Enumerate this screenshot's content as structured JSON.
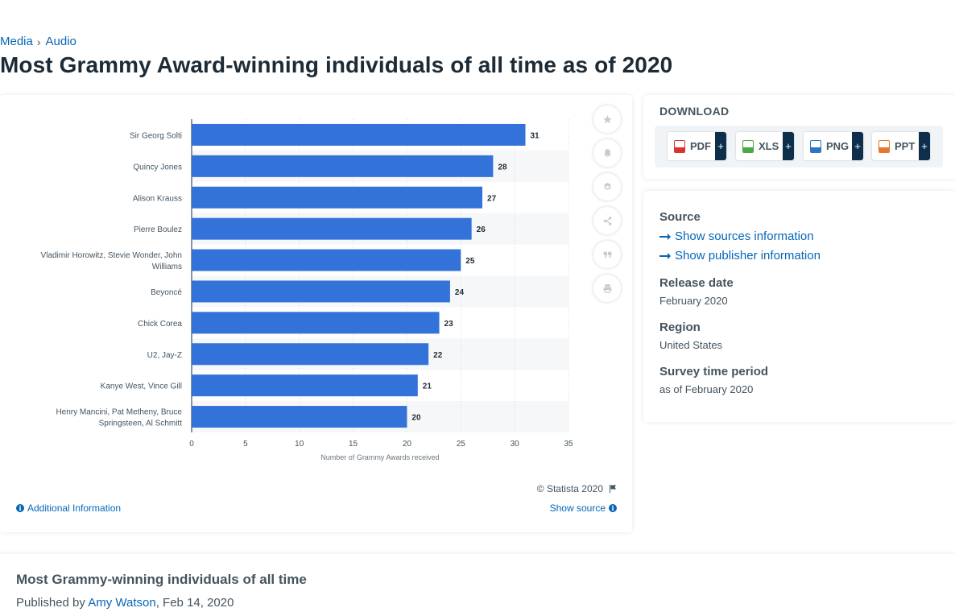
{
  "breadcrumb": {
    "item1": "Media",
    "item2": "Audio",
    "separator": "›"
  },
  "title": "Most Grammy Award-winning individuals of all time as of 2020",
  "chart_data": {
    "type": "bar",
    "orientation": "horizontal",
    "categories": [
      [
        "Sir Georg Solti"
      ],
      [
        "Quincy Jones"
      ],
      [
        "Alison Krauss"
      ],
      [
        "Pierre Boulez"
      ],
      [
        "Vladimir Horowitz, Stevie Wonder, John",
        "Williams"
      ],
      [
        "Beyoncé"
      ],
      [
        "Chick Corea"
      ],
      [
        "U2, Jay-Z"
      ],
      [
        "Kanye West, Vince Gill"
      ],
      [
        "Henry Mancini, Pat Metheny, Bruce",
        "Springsteen, Al Schmitt"
      ]
    ],
    "values": [
      31,
      28,
      27,
      26,
      25,
      24,
      23,
      22,
      21,
      20
    ],
    "xlabel": "Number of Grammy Awards received",
    "xlim": [
      0,
      35
    ],
    "xticks": [
      0,
      5,
      10,
      15,
      20,
      25,
      30,
      35
    ],
    "bar_color": "#3373d9",
    "grid": true,
    "data_labels": true
  },
  "chart_footer": {
    "copyright": "© Statista 2020",
    "additional_info": "Additional Information",
    "show_source": "Show source"
  },
  "tools": [
    "star-icon",
    "bell-icon",
    "gear-icon",
    "share-icon",
    "quote-icon",
    "print-icon"
  ],
  "download": {
    "title": "DOWNLOAD",
    "buttons": [
      {
        "label": "PDF",
        "plus": "+",
        "color": "#d9342b"
      },
      {
        "label": "XLS",
        "plus": "+",
        "color": "#4aa845"
      },
      {
        "label": "PNG",
        "plus": "+",
        "color": "#2f75c2"
      },
      {
        "label": "PPT",
        "plus": "+",
        "color": "#e8762b"
      }
    ]
  },
  "source_panel": {
    "source_heading": "Source",
    "show_sources": "Show sources information",
    "show_publisher": "Show publisher information",
    "release_heading": "Release date",
    "release_value": "February 2020",
    "region_heading": "Region",
    "region_value": "United States",
    "survey_heading": "Survey time period",
    "survey_value": "as of February 2020"
  },
  "bottom": {
    "title": "Most Grammy-winning individuals of all time",
    "published_prefix": "Published by",
    "author": "Amy Watson",
    "date": ", Feb 14, 2020"
  },
  "colors": {
    "link": "#0666b7",
    "dark_navy": "#0e2f4b",
    "text": "#44545f"
  }
}
